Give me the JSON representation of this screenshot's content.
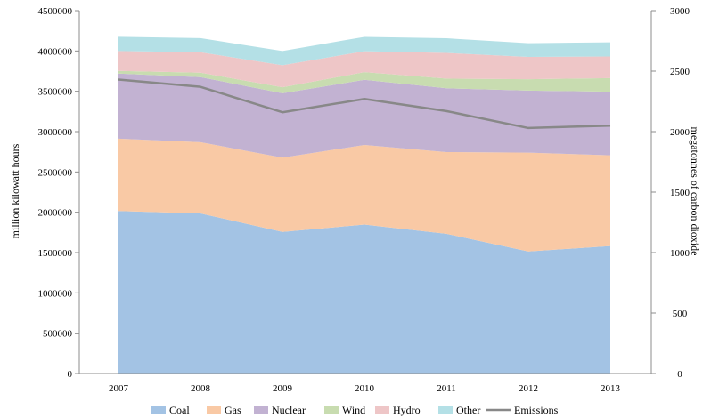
{
  "chart_data": {
    "type": "area",
    "stacked": true,
    "categories": [
      "2007",
      "2008",
      "2009",
      "2010",
      "2011",
      "2012",
      "2013"
    ],
    "series": [
      {
        "name": "Coal",
        "color": "#a3c3e4",
        "values": [
          2016000,
          1986000,
          1756000,
          1847000,
          1733000,
          1514000,
          1581000
        ]
      },
      {
        "name": "Gas",
        "color": "#f9c9a5",
        "values": [
          897000,
          883000,
          921000,
          988000,
          1014000,
          1226000,
          1125000
        ]
      },
      {
        "name": "Nuclear",
        "color": "#c2b2d2",
        "values": [
          806000,
          806000,
          799000,
          807000,
          790000,
          769000,
          789000
        ]
      },
      {
        "name": "Wind",
        "color": "#c8dcb0",
        "values": [
          34000,
          55000,
          74000,
          95000,
          120000,
          141000,
          168000
        ]
      },
      {
        "name": "Hydro",
        "color": "#eec6c7",
        "values": [
          247000,
          254000,
          273000,
          260000,
          319000,
          276000,
          269000
        ]
      },
      {
        "name": "Other",
        "color": "#b4e0e6",
        "values": [
          176000,
          175000,
          177000,
          178000,
          182000,
          170000,
          175000
        ]
      }
    ],
    "line_series": {
      "name": "Emissions",
      "color": "#888888",
      "axis": "right",
      "values": [
        2430,
        2370,
        2160,
        2270,
        2170,
        2030,
        2050
      ]
    },
    "ylim": [
      0,
      4500000
    ],
    "yticks": [
      "0",
      "500000",
      "1000000",
      "1500000",
      "2000000",
      "2500000",
      "3000000",
      "3500000",
      "4000000",
      "4500000"
    ],
    "ylabel": "million kilowatt hours",
    "y2lim": [
      0,
      3000
    ],
    "y2ticks": [
      "0",
      "500",
      "1000",
      "1500",
      "2000",
      "2500",
      "3000"
    ],
    "y2label": "megatonnes of carbon dioxide",
    "grid": false,
    "legend_position": "bottom"
  }
}
